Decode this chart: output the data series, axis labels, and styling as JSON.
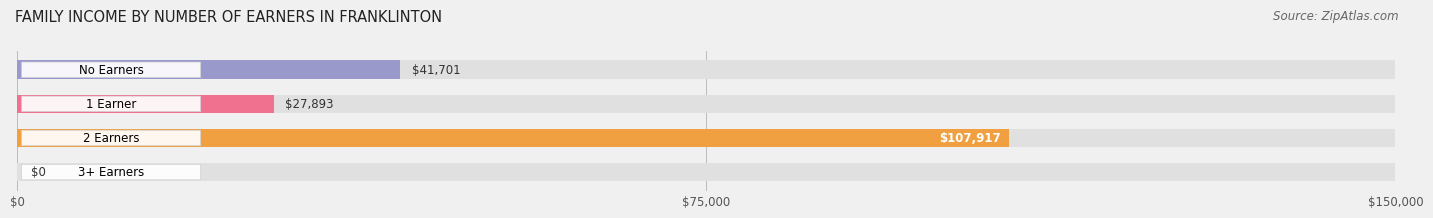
{
  "title": "FAMILY INCOME BY NUMBER OF EARNERS IN FRANKLINTON",
  "source": "Source: ZipAtlas.com",
  "categories": [
    "No Earners",
    "1 Earner",
    "2 Earners",
    "3+ Earners"
  ],
  "values": [
    41701,
    27893,
    107917,
    0
  ],
  "bar_colors": [
    "#9999cc",
    "#f07090",
    "#f0a040",
    "#f09090"
  ],
  "bar_bg_color": "#e0e0e0",
  "label_colors": [
    "#000000",
    "#000000",
    "#ffffff",
    "#000000"
  ],
  "xlim": [
    0,
    150000
  ],
  "xticks": [
    0,
    75000,
    150000
  ],
  "xtick_labels": [
    "$0",
    "$75,000",
    "$150,000"
  ],
  "value_labels": [
    "$41,701",
    "$27,893",
    "$107,917",
    "$0"
  ],
  "background_color": "#f0f0f0",
  "bar_height": 0.55,
  "title_fontsize": 10.5,
  "label_fontsize": 8.5,
  "value_fontsize": 8.5,
  "source_fontsize": 8.5
}
